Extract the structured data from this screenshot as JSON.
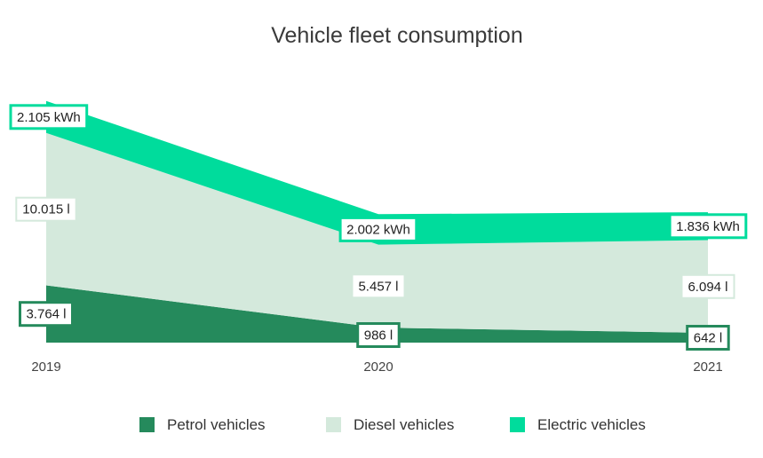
{
  "chart_data": {
    "type": "area",
    "stacked": true,
    "title": "Vehicle fleet consumption",
    "xlabel": "",
    "ylabel": "",
    "categories": [
      "2019",
      "2020",
      "2021"
    ],
    "series": [
      {
        "name": "Petrol vehicles",
        "color": "#258a5c",
        "values": [
          3764,
          986,
          642
        ],
        "labels": [
          "3.764 l",
          "986 l",
          "642 l"
        ]
      },
      {
        "name": "Diesel vehicles",
        "color": "#d4e9dc",
        "values": [
          10015,
          5457,
          6094
        ],
        "labels": [
          "10.015 l",
          "5.457 l",
          "6.094 l"
        ]
      },
      {
        "name": "Electric vehicles",
        "color": "#00dc9c",
        "values": [
          2105,
          2002,
          1836
        ],
        "labels": [
          "2.105 kWh",
          "2.002 kWh",
          "1.836 kWh"
        ]
      }
    ],
    "legend_position": "bottom",
    "grid": false
  }
}
